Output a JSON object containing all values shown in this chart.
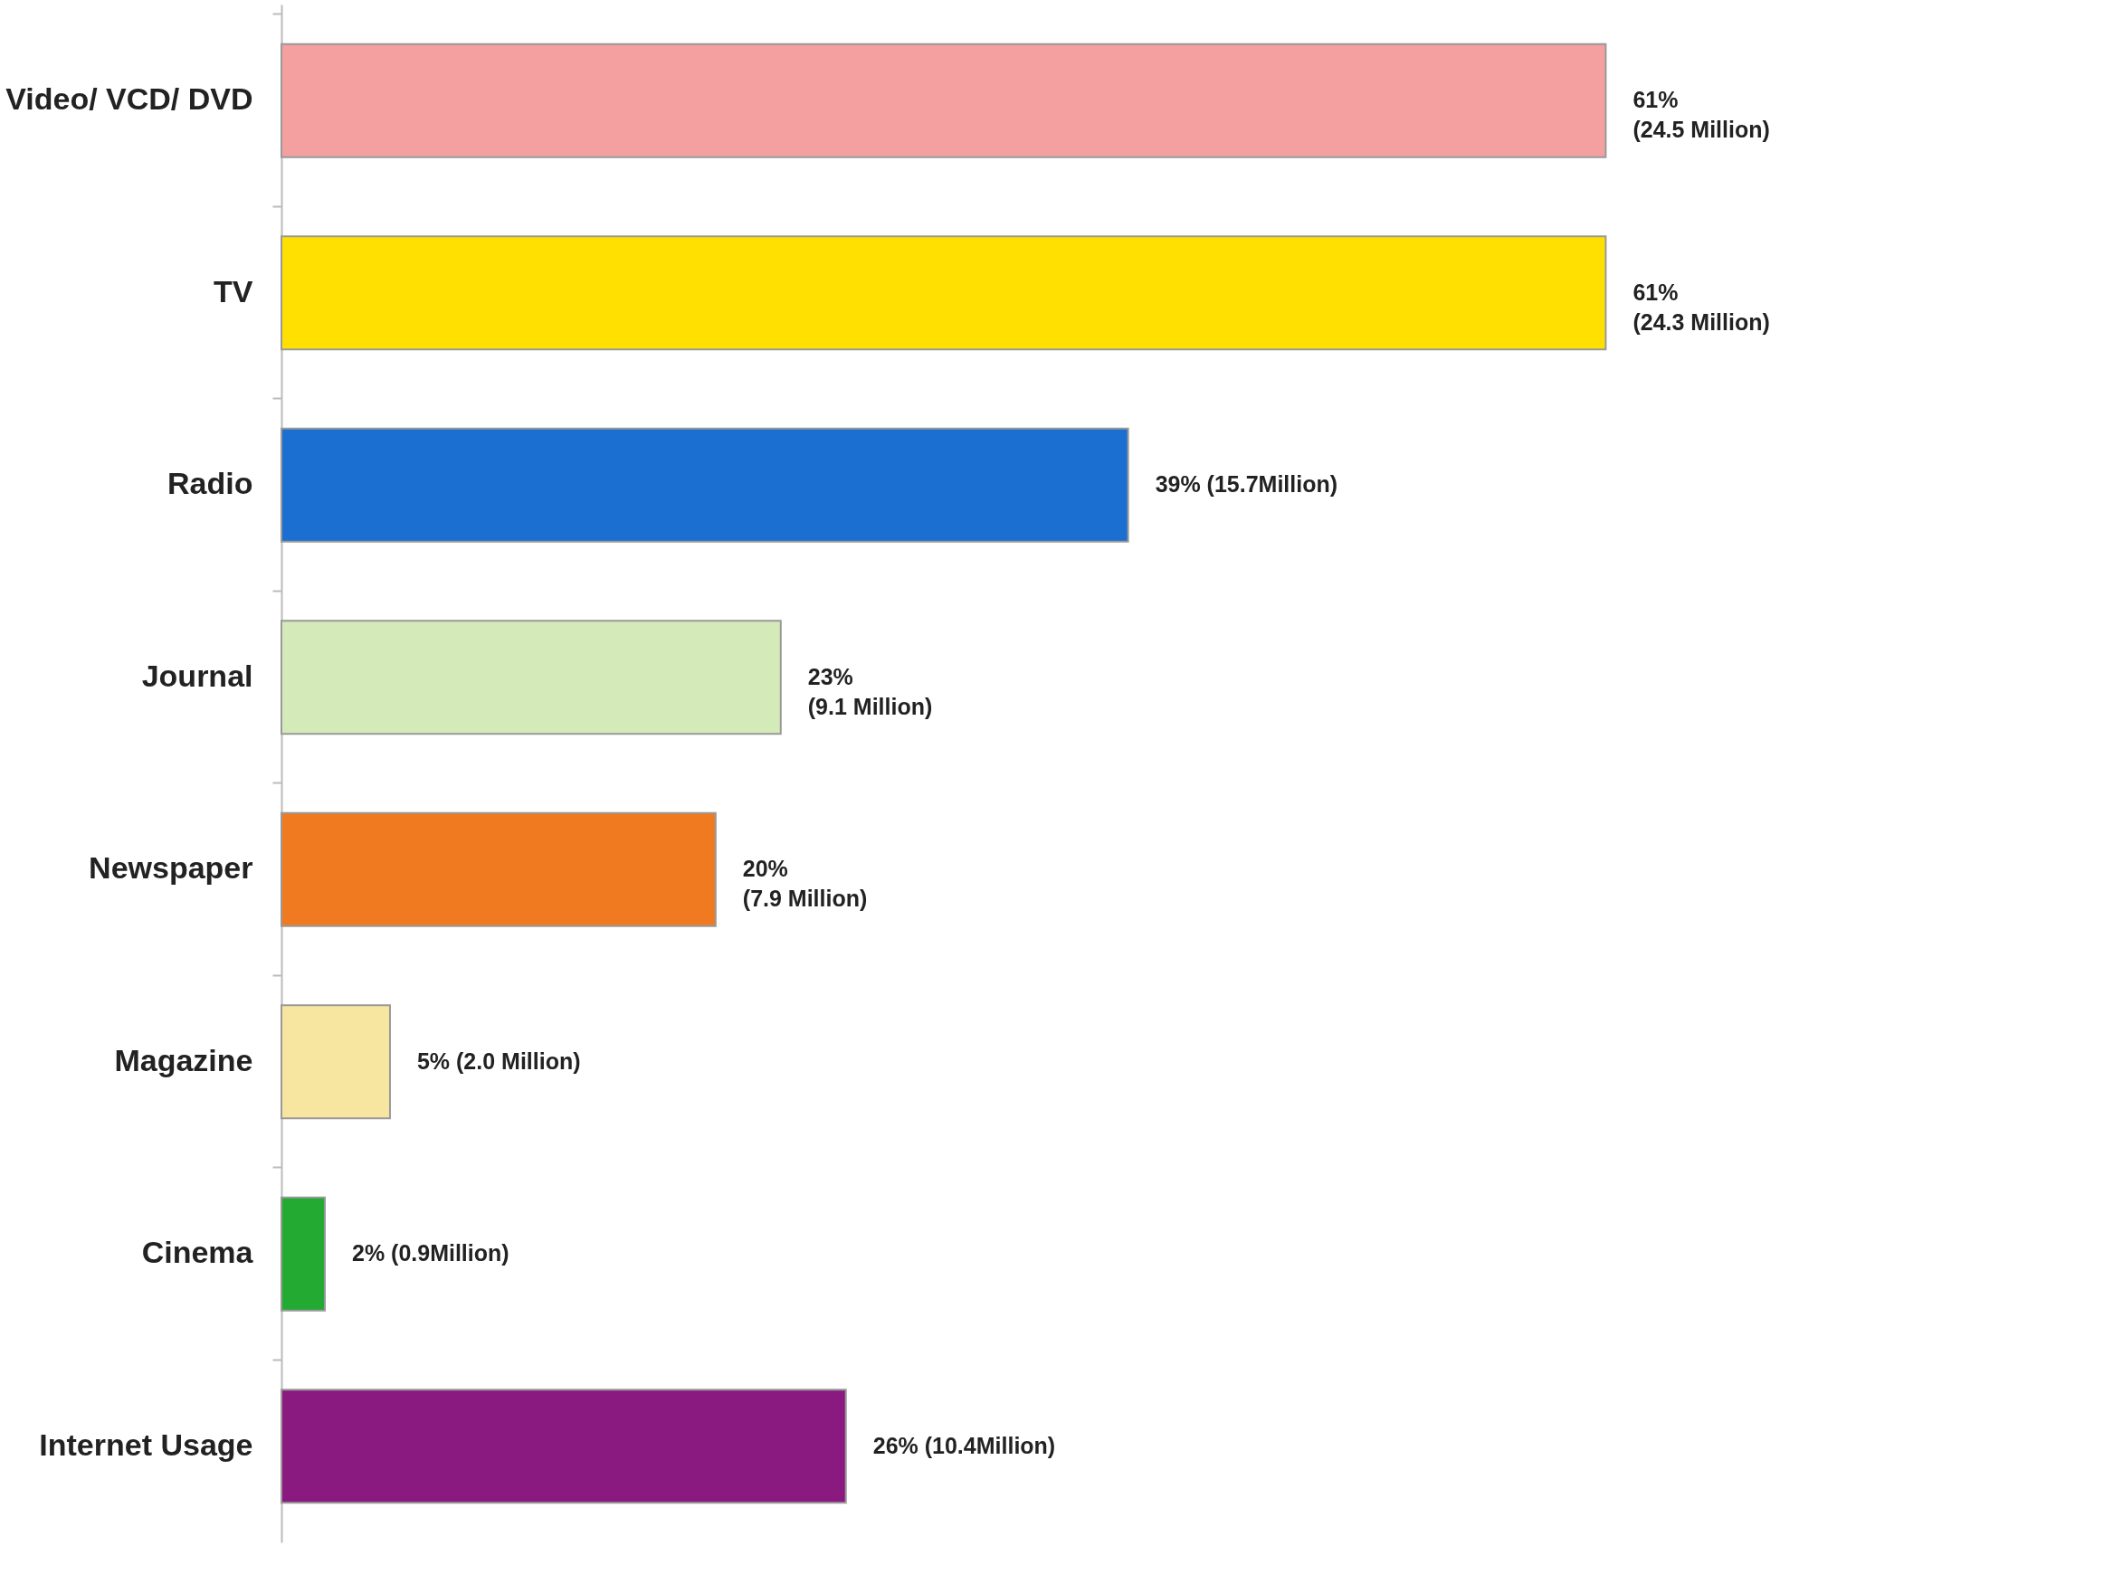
{
  "chart_data": {
    "type": "bar",
    "orientation": "horizontal",
    "categories": [
      "Video/ VCD/ DVD",
      "TV",
      "Radio",
      "Journal",
      "Newspaper",
      "Magazine",
      "Cinema",
      "Internet Usage"
    ],
    "values": [
      61,
      61,
      39,
      23,
      20,
      5,
      2,
      26
    ],
    "colors": [
      "#f4a0a0",
      "#ffe000",
      "#1a6fd0",
      "#d4eab8",
      "#f07a20",
      "#f6e6a0",
      "#22aa33",
      "#8a1a80"
    ],
    "value_labels": [
      "61%\n(24.5 Million)",
      "61%\n(24.3 Million)",
      "39% (15.7Million)",
      "23%\n(9.1 Million)",
      "20%\n(7.9 Million)",
      "5% (2.0 Million)",
      "2% (0.9Million)",
      "26% (10.4Million)"
    ],
    "grid": false
  }
}
